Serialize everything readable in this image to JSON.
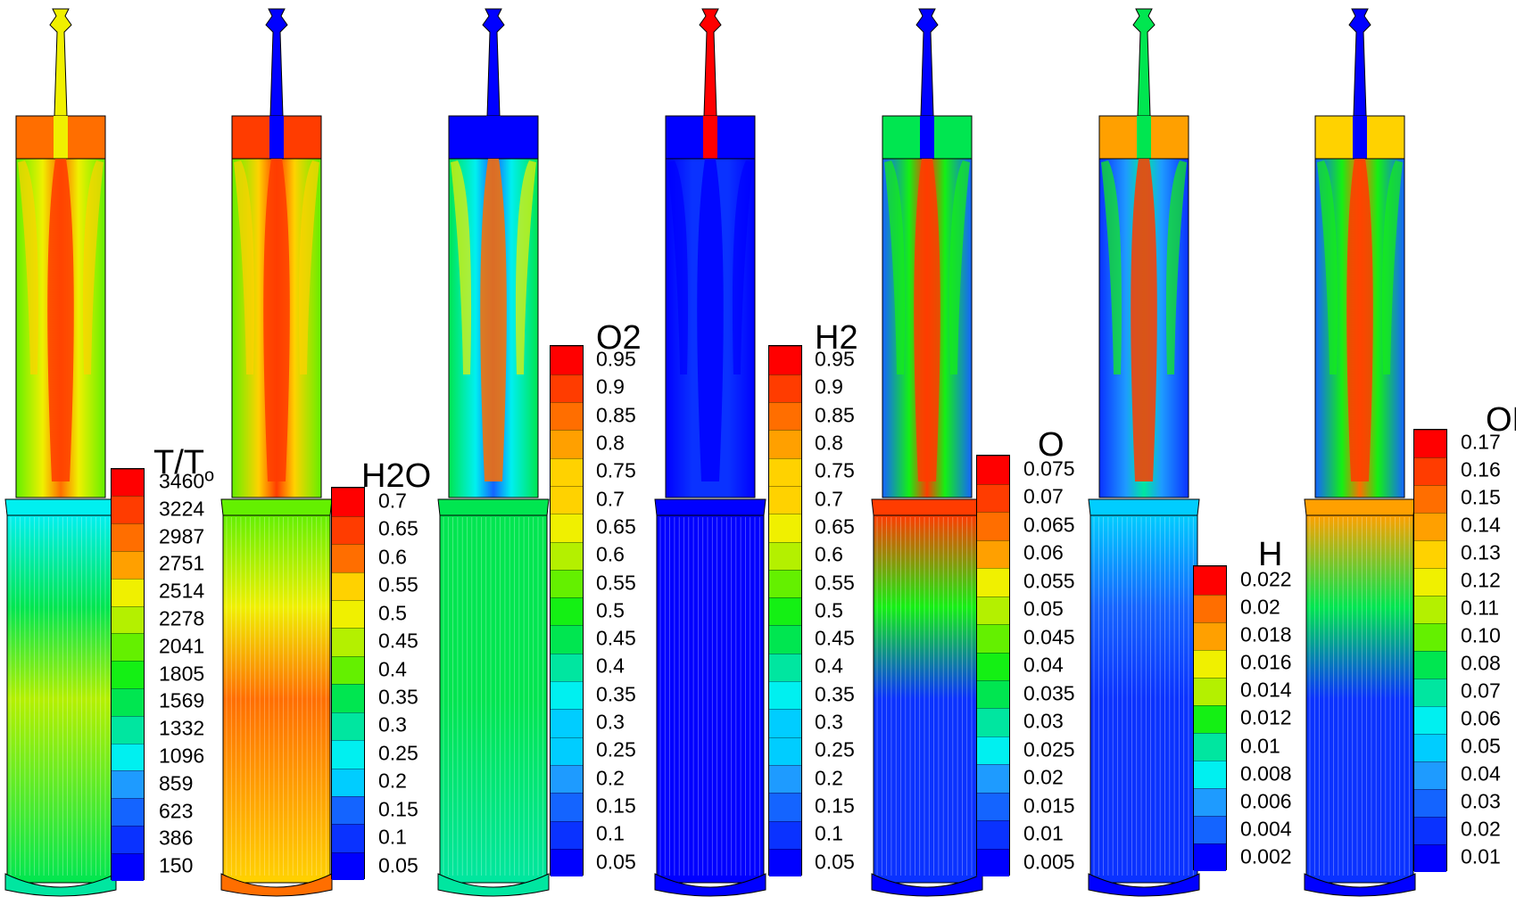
{
  "colormap": [
    "#0000ff",
    "#0a32ff",
    "#1464ff",
    "#1e9bff",
    "#00cdff",
    "#00f0f0",
    "#00e6a0",
    "#00e650",
    "#14f014",
    "#64f000",
    "#b4f000",
    "#f0f000",
    "#ffd200",
    "#ffa000",
    "#ff6e00",
    "#ff3c00",
    "#ff0000"
  ],
  "panels": [
    {
      "id": "temperature",
      "title": "T/T",
      "title_sub": "o",
      "ticks": [
        "3460",
        "3224",
        "2987",
        "2751",
        "2514",
        "2278",
        "2041",
        "1805",
        "1569",
        "1332",
        "1096",
        "859",
        "623",
        "386",
        "150"
      ],
      "field": {
        "nozzle": 0.7,
        "plenum": 0.9,
        "tube_core": 0.88,
        "tube_edge": 0.55,
        "jets": 0.95,
        "bottom": 0.3,
        "lower_base": 0.42,
        "lower_jets": 0.6,
        "lower_edge": 0.35,
        "base": 0.38
      }
    },
    {
      "id": "h2o",
      "title": "H2O",
      "ticks": [
        "0.7",
        "0.65",
        "0.6",
        "0.55",
        "0.5",
        "0.45",
        "0.4",
        "0.35",
        "0.3",
        "0.25",
        "0.2",
        "0.15",
        "0.1",
        "0.05"
      ],
      "field": {
        "nozzle": 0.02,
        "plenum": 0.95,
        "tube_core": 0.92,
        "tube_edge": 0.55,
        "jets": 0.96,
        "bottom": 0.55,
        "lower_base": 0.78,
        "lower_jets": 0.85,
        "lower_edge": 0.7,
        "base": 0.85
      }
    },
    {
      "id": "o2",
      "title": "O2",
      "ticks": [
        "0.95",
        "0.9",
        "0.85",
        "0.8",
        "0.75",
        "0.7",
        "0.65",
        "0.6",
        "0.55",
        "0.5",
        "0.45",
        "0.4",
        "0.35",
        "0.3",
        "0.25",
        "0.2",
        "0.15",
        "0.1",
        "0.05"
      ],
      "field": {
        "nozzle": 0.0,
        "plenum": 0.03,
        "tube_core": 0.12,
        "tube_edge": 0.45,
        "jets": 0.9,
        "bottom": 0.42,
        "lower_base": 0.4,
        "lower_jets": 0.45,
        "lower_edge": 0.38,
        "base": 0.4
      }
    },
    {
      "id": "h2",
      "title": "H2",
      "ticks": [
        "0.95",
        "0.9",
        "0.85",
        "0.8",
        "0.75",
        "0.7",
        "0.65",
        "0.6",
        "0.55",
        "0.5",
        "0.45",
        "0.4",
        "0.35",
        "0.3",
        "0.25",
        "0.2",
        "0.15",
        "0.1",
        "0.05"
      ],
      "field": {
        "nozzle": 1.0,
        "plenum": 0.0,
        "tube_core": 0.08,
        "tube_edge": 0.0,
        "jets": 0.0,
        "bottom": 0.0,
        "lower_base": 0.02,
        "lower_jets": 0.02,
        "lower_edge": 0.02,
        "base": 0.03
      }
    },
    {
      "id": "o",
      "title": "O",
      "ticks": [
        "0.075",
        "0.07",
        "0.065",
        "0.06",
        "0.055",
        "0.05",
        "0.045",
        "0.04",
        "0.035",
        "0.03",
        "0.025",
        "0.02",
        "0.015",
        "0.01",
        "0.005"
      ],
      "field": {
        "nozzle": 0.0,
        "plenum": 0.45,
        "tube_core": 0.92,
        "tube_edge": 0.1,
        "jets": 0.95,
        "bottom": 0.92,
        "lower_base": 0.05,
        "lower_jets": 0.05,
        "lower_edge": 0.05,
        "base": 0.03
      }
    },
    {
      "id": "h",
      "title": "H",
      "ticks": [
        "0.022",
        "0.02",
        "0.018",
        "0.016",
        "0.014",
        "0.012",
        "0.01",
        "0.008",
        "0.006",
        "0.004",
        "0.002"
      ],
      "field": {
        "nozzle": 0.45,
        "plenum": 0.8,
        "tube_core": 0.35,
        "tube_edge": 0.05,
        "jets": 0.95,
        "bottom": 0.25,
        "lower_base": 0.05,
        "lower_jets": 0.05,
        "lower_edge": 0.05,
        "base": 0.03
      }
    },
    {
      "id": "oh",
      "title": "OH",
      "ticks": [
        "0.17",
        "0.16",
        "0.15",
        "0.14",
        "0.13",
        "0.12",
        "0.11",
        "0.10",
        "0.08",
        "0.07",
        "0.06",
        "0.05",
        "0.04",
        "0.03",
        "0.02",
        "0.01"
      ],
      "field": {
        "nozzle": 0.0,
        "plenum": 0.75,
        "tube_core": 0.85,
        "tube_edge": 0.1,
        "jets": 0.95,
        "bottom": 0.8,
        "lower_base": 0.05,
        "lower_jets": 0.05,
        "lower_edge": 0.05,
        "base": 0.03
      }
    }
  ]
}
